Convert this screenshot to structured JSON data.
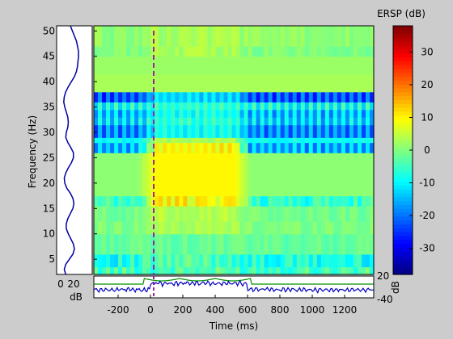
{
  "chart_data": [
    {
      "name": "ersp-heatmap",
      "type": "heatmap",
      "colormap": "jet",
      "xlabel": "Time (ms)",
      "ylabel": "Frequency (Hz)",
      "xlim": [
        -350,
        1380
      ],
      "ylim": [
        2,
        51
      ],
      "yticks": [
        5,
        10,
        15,
        20,
        25,
        30,
        35,
        40,
        45,
        50
      ],
      "xticks": [
        -200,
        0,
        200,
        400,
        600,
        800,
        1000,
        1200
      ],
      "event_marker": {
        "x": 0,
        "color": "#a020a0",
        "style": "dashed"
      },
      "colorbar": {
        "title": "ERSP (dB)",
        "range": [
          -38,
          38
        ],
        "ticks": [
          -30,
          -20,
          -10,
          0,
          10,
          20,
          30
        ]
      },
      "bands": [
        {
          "ymin": 2,
          "ymax": 3.5,
          "baseline": -4,
          "task": -4,
          "texture": "noisy"
        },
        {
          "ymin": 3.5,
          "ymax": 6,
          "baseline": -8,
          "task": -4,
          "texture": "noisy"
        },
        {
          "ymin": 6,
          "ymax": 10,
          "baseline": -2,
          "task": -2,
          "texture": "mild"
        },
        {
          "ymin": 10,
          "ymax": 12.5,
          "baseline": 0,
          "task": 3,
          "texture": "mild"
        },
        {
          "ymin": 12.5,
          "ymax": 15.5,
          "baseline": -1,
          "task": 4,
          "texture": "mild"
        },
        {
          "ymin": 15.5,
          "ymax": 17.5,
          "baseline": -6,
          "task": 10,
          "texture": "noisy"
        },
        {
          "ymin": 17.5,
          "ymax": 26,
          "baseline": 1,
          "task": 10,
          "texture": "none"
        },
        {
          "ymin": 26,
          "ymax": 28,
          "baseline": -15,
          "task": 10,
          "texture": "striped"
        },
        {
          "ymin": 28,
          "ymax": 29,
          "baseline": -9,
          "task": 3,
          "texture": "mild"
        },
        {
          "ymin": 29,
          "ymax": 31.5,
          "baseline": -18,
          "task": -8,
          "texture": "striped"
        },
        {
          "ymin": 31.5,
          "ymax": 33,
          "baseline": -12,
          "task": -6,
          "texture": "striped"
        },
        {
          "ymin": 33,
          "ymax": 34.5,
          "baseline": -14,
          "task": -8,
          "texture": "striped"
        },
        {
          "ymin": 34.5,
          "ymax": 36,
          "baseline": -8,
          "task": -6,
          "texture": "striped"
        },
        {
          "ymin": 36,
          "ymax": 38,
          "baseline": -22,
          "task": -12,
          "texture": "striped"
        },
        {
          "ymin": 38,
          "ymax": 41.5,
          "baseline": 3,
          "task": 3,
          "texture": "none"
        },
        {
          "ymin": 41.5,
          "ymax": 45,
          "baseline": 2,
          "task": 2,
          "texture": "none"
        },
        {
          "ymin": 45,
          "ymax": 47,
          "baseline": 0,
          "task": 3,
          "texture": "mild"
        },
        {
          "ymin": 47,
          "ymax": 51,
          "baseline": 1,
          "task": 3,
          "texture": "mild"
        }
      ]
    },
    {
      "name": "baseline-spectrum",
      "type": "line",
      "xlabel": "dB",
      "xticks": [
        0,
        20
      ],
      "xlim": [
        -5,
        65
      ],
      "ylim": [
        2,
        51
      ],
      "line_color": "#0000a0",
      "points": [
        [
          2,
          13
        ],
        [
          3,
          10
        ],
        [
          4,
          13
        ],
        [
          5,
          20
        ],
        [
          6,
          27
        ],
        [
          7,
          30
        ],
        [
          8,
          28
        ],
        [
          9,
          23
        ],
        [
          10,
          18
        ],
        [
          11,
          14
        ],
        [
          12,
          14
        ],
        [
          13,
          17
        ],
        [
          14,
          22
        ],
        [
          15,
          27
        ],
        [
          16,
          29
        ],
        [
          17,
          27
        ],
        [
          18,
          22
        ],
        [
          19,
          15
        ],
        [
          20,
          11
        ],
        [
          21,
          10
        ],
        [
          22,
          13
        ],
        [
          23,
          18
        ],
        [
          24,
          24
        ],
        [
          25,
          28
        ],
        [
          26,
          28
        ],
        [
          27,
          23
        ],
        [
          28,
          17
        ],
        [
          29,
          13
        ],
        [
          30,
          14
        ],
        [
          31,
          17
        ],
        [
          32,
          18
        ],
        [
          33,
          17
        ],
        [
          34,
          14
        ],
        [
          35,
          11
        ],
        [
          36,
          9
        ],
        [
          37,
          10
        ],
        [
          38,
          13
        ],
        [
          39,
          18
        ],
        [
          40,
          24
        ],
        [
          41,
          30
        ],
        [
          42,
          34
        ],
        [
          43,
          36
        ],
        [
          44,
          37
        ],
        [
          45,
          38
        ],
        [
          46,
          38
        ],
        [
          47,
          36
        ],
        [
          48,
          34
        ],
        [
          49,
          30
        ],
        [
          50,
          26
        ],
        [
          51,
          22
        ]
      ]
    },
    {
      "name": "erp-trace",
      "type": "line",
      "xlabel": "Time (ms)",
      "yticks": [
        20,
        -40
      ],
      "ylim": [
        -40,
        20
      ],
      "series": [
        {
          "id": "envelope",
          "color": "#009000"
        },
        {
          "id": "erp",
          "color": "#0000c0"
        }
      ]
    }
  ]
}
